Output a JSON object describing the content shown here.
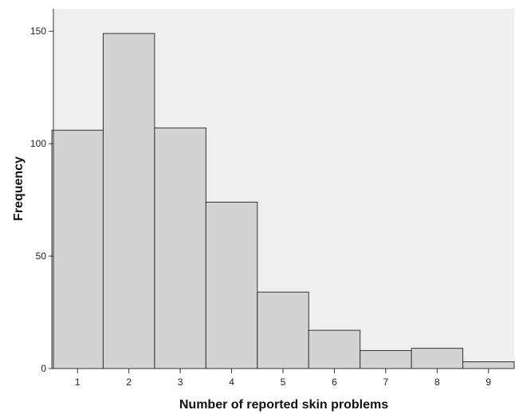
{
  "chart_data": {
    "type": "bar",
    "categories": [
      "1",
      "2",
      "3",
      "4",
      "5",
      "6",
      "7",
      "8",
      "9"
    ],
    "values": [
      106,
      149,
      107,
      74,
      34,
      17,
      8,
      9,
      3
    ],
    "title": "",
    "xlabel": "Number of reported skin problems",
    "ylabel": "Frequency",
    "ylim": [
      0,
      160
    ],
    "yticks": [
      "0",
      "50",
      "100",
      "150"
    ],
    "ytick_values": [
      0,
      50,
      100,
      150
    ],
    "grid": false,
    "legend": "none",
    "colors": {
      "plot_background": "#efefef",
      "bar_fill": "#d3d3d3",
      "bar_stroke": "#333333",
      "axis": "#333333"
    }
  }
}
